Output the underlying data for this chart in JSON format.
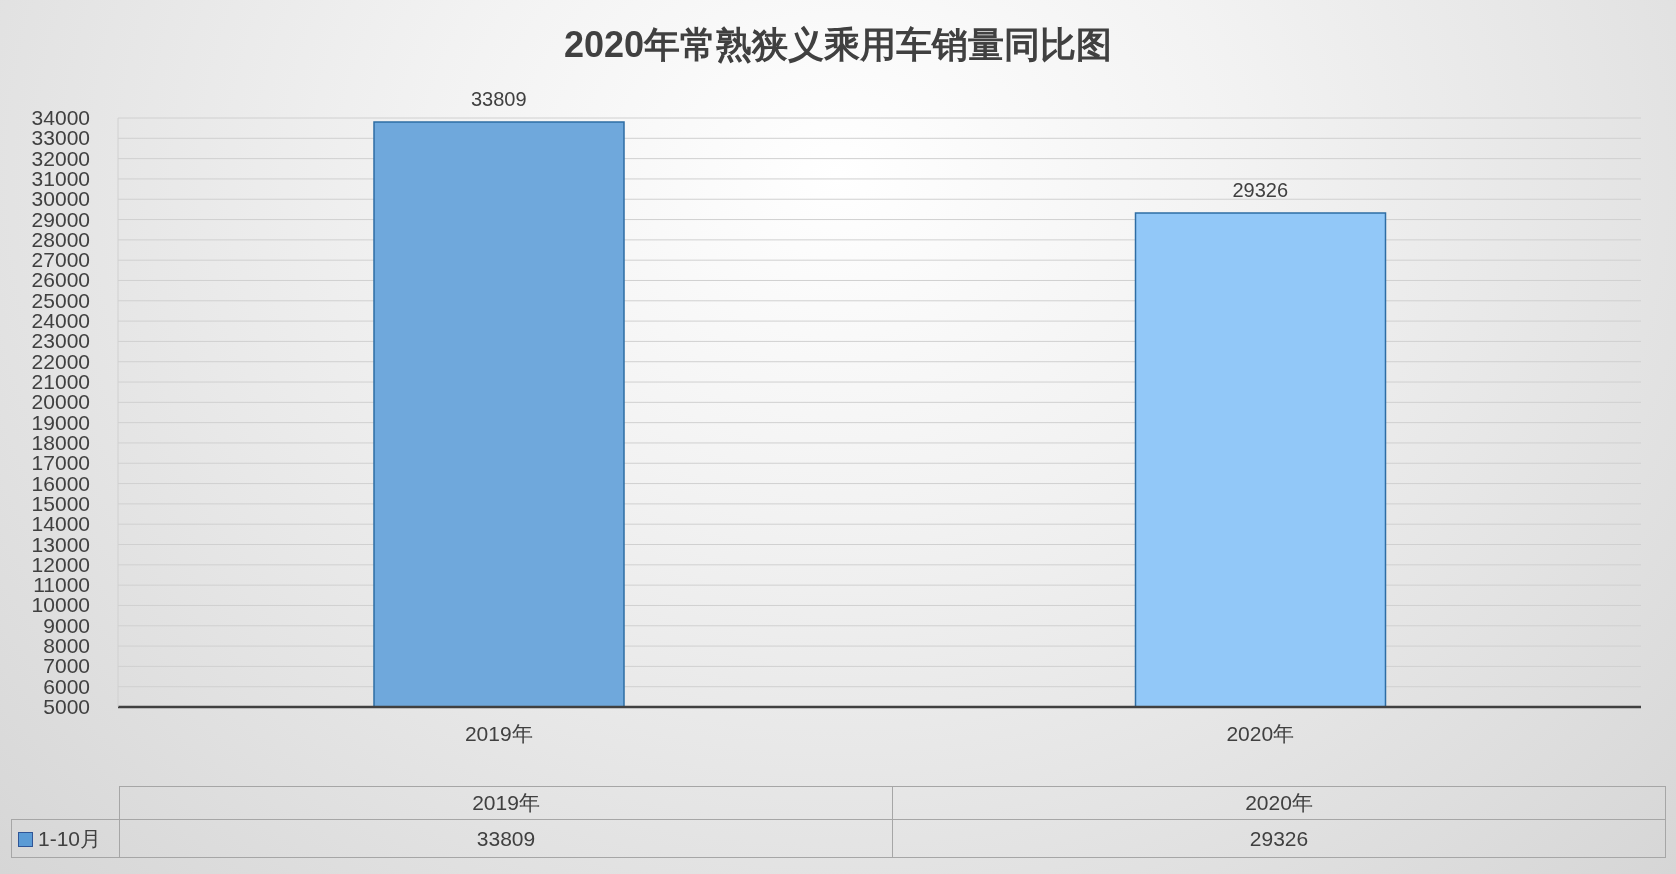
{
  "chart_data": {
    "type": "bar",
    "title": "2020年常熟狭义乘用车销量同比图",
    "categories": [
      "2019年",
      "2020年"
    ],
    "series": [
      {
        "name": "1-10月",
        "color": "#5b9bd5",
        "colors": [
          "#6fa8dc",
          "#92c8f8"
        ],
        "values": [
          33809,
          29326
        ]
      }
    ],
    "ylim": [
      5000,
      34000
    ],
    "yticks": [
      5000,
      6000,
      7000,
      8000,
      9000,
      10000,
      11000,
      12000,
      13000,
      14000,
      15000,
      16000,
      17000,
      18000,
      19000,
      20000,
      21000,
      22000,
      23000,
      24000,
      25000,
      26000,
      27000,
      28000,
      29000,
      30000,
      31000,
      32000,
      33000,
      34000
    ],
    "annotations": [
      {
        "text": "33809",
        "x": "2019年",
        "y": 33809
      },
      {
        "text": "29326",
        "x": "2020年",
        "y": 29326
      }
    ],
    "grid": "y",
    "legend": "bottom",
    "data_labels": true
  }
}
